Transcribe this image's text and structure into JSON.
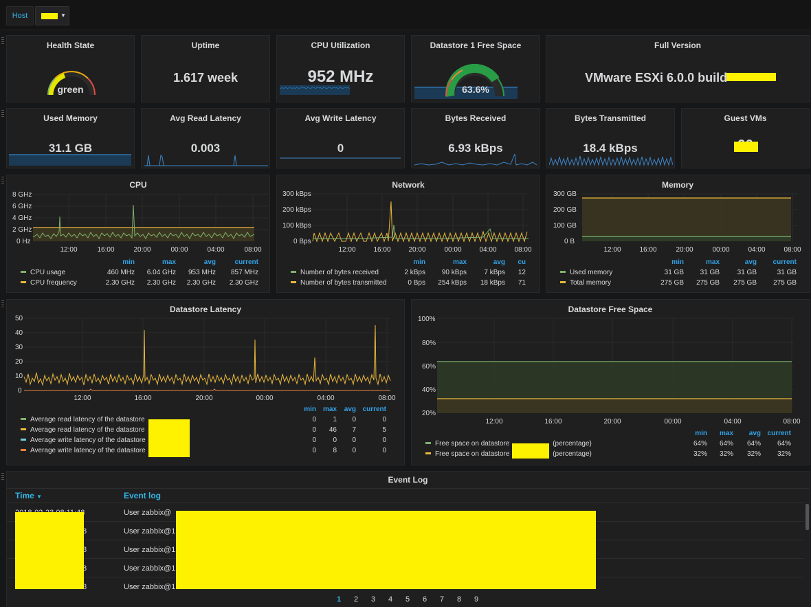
{
  "topbar": {
    "var_label": "Host"
  },
  "stats": {
    "health": {
      "title": "Health State",
      "value": "green"
    },
    "uptime": {
      "title": "Uptime",
      "value": "1.617 week"
    },
    "cpu": {
      "title": "CPU Utilization",
      "value": "952 MHz"
    },
    "ds1": {
      "title": "Datastore 1 Free Space",
      "value": "63.6%",
      "level": 0.636
    },
    "version": {
      "title": "Full Version",
      "value": "VMware ESXi 6.0.0 build-"
    },
    "usedmem": {
      "title": "Used Memory",
      "value": "31.1 GB"
    },
    "readlat": {
      "title": "Avg Read Latency",
      "value": "0.003"
    },
    "writelat": {
      "title": "Avg Write Latency",
      "value": "0"
    },
    "bytesrx": {
      "title": "Bytes Received",
      "value": "6.93 kBps"
    },
    "bytestx": {
      "title": "Bytes Transmitted",
      "value": "18.4 kBps"
    },
    "guestvms": {
      "title": "Guest VMs",
      "value": "96"
    }
  },
  "cpu_panel": {
    "title": "CPU",
    "yticks": [
      "8 GHz",
      "6 GHz",
      "4 GHz",
      "2 GHz",
      "0 Hz"
    ],
    "xticks": [
      "12:00",
      "16:00",
      "20:00",
      "00:00",
      "04:00",
      "08:00"
    ],
    "legend_cols": [
      "min",
      "max",
      "avg",
      "current"
    ],
    "legend": [
      {
        "name": "CPU usage",
        "color": "#7eb26d",
        "min": "460 MHz",
        "max": "6.04 GHz",
        "avg": "953 MHz",
        "current": "857 MHz"
      },
      {
        "name": "CPU frequency",
        "color": "#eab839",
        "min": "2.30 GHz",
        "max": "2.30 GHz",
        "avg": "2.30 GHz",
        "current": "2.30 GHz"
      }
    ]
  },
  "network_panel": {
    "title": "Network",
    "yticks": [
      "300 kBps",
      "200 kBps",
      "100 kBps",
      "0 Bps"
    ],
    "xticks": [
      "12:00",
      "16:00",
      "20:00",
      "00:00",
      "04:00",
      "08:00"
    ],
    "legend_cols": [
      "min",
      "max",
      "avg",
      "cu"
    ],
    "legend": [
      {
        "name": "Number of bytes received",
        "color": "#7eb26d",
        "min": "2 kBps",
        "max": "90 kBps",
        "avg": "7 kBps",
        "current": "12"
      },
      {
        "name": "Number of bytes transmitted",
        "color": "#eab839",
        "min": "0 Bps",
        "max": "254 kBps",
        "avg": "18 kBps",
        "current": "71"
      }
    ]
  },
  "memory_panel": {
    "title": "Memory",
    "yticks": [
      "300 GB",
      "200 GB",
      "100 GB",
      "0 B"
    ],
    "xticks": [
      "12:00",
      "16:00",
      "20:00",
      "00:00",
      "04:00",
      "08:00"
    ],
    "legend_cols": [
      "min",
      "max",
      "avg",
      "current"
    ],
    "legend": [
      {
        "name": "Used memory",
        "color": "#7eb26d",
        "min": "31 GB",
        "max": "31 GB",
        "avg": "31 GB",
        "current": "31 GB"
      },
      {
        "name": "Total memory",
        "color": "#eab839",
        "min": "275 GB",
        "max": "275 GB",
        "avg": "275 GB",
        "current": "275 GB"
      }
    ]
  },
  "latency_panel": {
    "title": "Datastore Latency",
    "yticks": [
      "50",
      "40",
      "30",
      "20",
      "10",
      "0"
    ],
    "xticks": [
      "12:00",
      "16:00",
      "20:00",
      "00:00",
      "04:00",
      "08:00"
    ],
    "legend_cols": [
      "min",
      "max",
      "avg",
      "current"
    ],
    "legend": [
      {
        "name": "Average read latency of the datastore",
        "color": "#7eb26d",
        "min": "0",
        "max": "1",
        "avg": "0",
        "current": "0"
      },
      {
        "name": "Average read latency of the datastore",
        "color": "#eab839",
        "min": "0",
        "max": "46",
        "avg": "7",
        "current": "5"
      },
      {
        "name": "Average write latency of the datastore",
        "color": "#6ed0e0",
        "min": "0",
        "max": "0",
        "avg": "0",
        "current": "0"
      },
      {
        "name": "Average write latency of the datastore",
        "color": "#ef843c",
        "min": "0",
        "max": "8",
        "avg": "0",
        "current": "0"
      }
    ]
  },
  "freespace_panel": {
    "title": "Datastore Free Space",
    "yticks": [
      "100%",
      "80%",
      "60%",
      "40%",
      "20%"
    ],
    "xticks": [
      "12:00",
      "16:00",
      "20:00",
      "00:00",
      "04:00",
      "08:00"
    ],
    "legend_cols": [
      "min",
      "max",
      "avg",
      "current"
    ],
    "legend": [
      {
        "name": "Free space on datastore",
        "suffix": "(percentage)",
        "color": "#7eb26d",
        "min": "64%",
        "max": "64%",
        "avg": "64%",
        "current": "64%"
      },
      {
        "name": "Free space on datastore",
        "suffix": "(percentage)",
        "color": "#eab839",
        "min": "32%",
        "max": "32%",
        "avg": "32%",
        "current": "32%"
      }
    ]
  },
  "event_log": {
    "title": "Event Log",
    "col_time": "Time",
    "col_event": "Event log",
    "rows": [
      {
        "time": "2018-02-23 08:11:48",
        "event": "User zabbix@"
      },
      {
        "time": "8",
        "event": "User zabbix@1"
      },
      {
        "time": "8",
        "event": "User zabbix@1"
      },
      {
        "time": "8",
        "event": "User zabbix@1"
      },
      {
        "time": "8",
        "event": "User zabbix@1"
      }
    ],
    "pages": [
      "1",
      "2",
      "3",
      "4",
      "5",
      "6",
      "7",
      "8",
      "9"
    ]
  },
  "colors": {
    "accent": "#33b5e5",
    "green": "#7eb26d",
    "yellow": "#eab839",
    "redaction": "#fff200"
  }
}
